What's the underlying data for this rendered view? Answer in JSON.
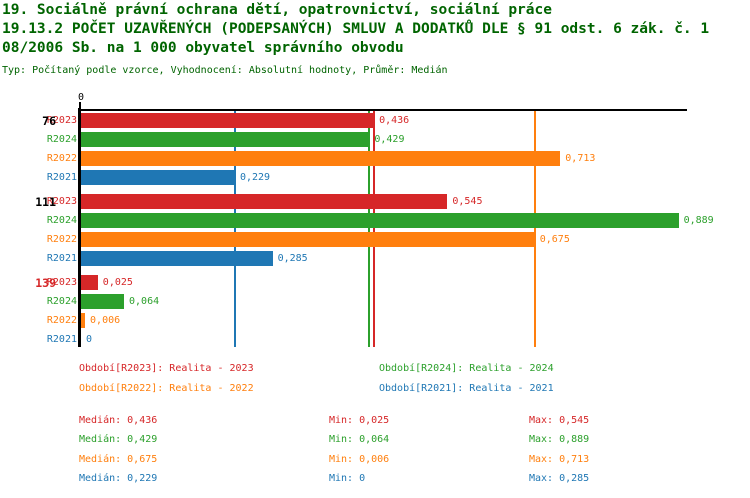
{
  "header": {
    "title_line1": "19. Sociálně právní ochrana dětí, opatrovnictví, sociální práce",
    "title_line2": "19.13.2 POČET UZAVŘENÝCH (PODEPSANÝCH) SMLUV A DODATKŮ DLE § 91 odst. 6 zák. č. 1",
    "title_line3": "08/2006 Sb. na 1 000 obyvatel správního obvodu",
    "subtitle": "Typ: Počítaný podle vzorce, Vyhodnocení: Absolutní hodnoty, Průměr: Medián",
    "title_color": "#006400"
  },
  "chart_data": {
    "type": "bar",
    "orientation": "horizontal",
    "value_axis": {
      "min": 0,
      "max": 0.9,
      "origin_tick_label": "0"
    },
    "grid": "off",
    "series_order": [
      "R2023",
      "R2024",
      "R2022",
      "R2021"
    ],
    "series_colors": {
      "R2023": "#d62728",
      "R2024": "#2ca02c",
      "R2022": "#ff7f0e",
      "R2021": "#1f77b4"
    },
    "groups": [
      {
        "label": "76",
        "label_color": "#000000",
        "values": {
          "R2023": 0.436,
          "R2024": 0.429,
          "R2022": 0.713,
          "R2021": 0.229
        },
        "value_labels": {
          "R2023": "0,436",
          "R2024": "0,429",
          "R2022": "0,713",
          "R2021": "0,229"
        }
      },
      {
        "label": "111",
        "label_color": "#000000",
        "values": {
          "R2023": 0.545,
          "R2024": 0.889,
          "R2022": 0.675,
          "R2021": 0.285
        },
        "value_labels": {
          "R2023": "0,545",
          "R2024": "0,889",
          "R2022": "0,675",
          "R2021": "0,285"
        }
      },
      {
        "label": "139",
        "label_color": "#d62728",
        "values": {
          "R2023": 0.025,
          "R2024": 0.064,
          "R2022": 0.006,
          "R2021": 0
        },
        "value_labels": {
          "R2023": "0,025",
          "R2024": "0,064",
          "R2022": "0,006",
          "R2021": "0"
        }
      }
    ],
    "median_lines": [
      {
        "series": "R2023",
        "value": 0.436
      },
      {
        "series": "R2024",
        "value": 0.429
      },
      {
        "series": "R2022",
        "value": 0.675
      },
      {
        "series": "R2021",
        "value": 0.229
      }
    ]
  },
  "legend": {
    "items": [
      {
        "series": "R2023",
        "text": "Období[R2023]: Realita - 2023"
      },
      {
        "series": "R2024",
        "text": "Období[R2024]: Realita - 2024"
      },
      {
        "series": "R2022",
        "text": "Období[R2022]: Realita - 2022"
      },
      {
        "series": "R2021",
        "text": "Období[R2021]: Realita - 2021"
      }
    ]
  },
  "stats": {
    "labels": {
      "median": "Medián",
      "min": "Min",
      "max": "Max"
    },
    "rows": [
      {
        "series": "R2023",
        "median": "0,436",
        "min": "0,025",
        "max": "0,545"
      },
      {
        "series": "R2024",
        "median": "0,429",
        "min": "0,064",
        "max": "0,889"
      },
      {
        "series": "R2022",
        "median": "0,675",
        "min": "0,006",
        "max": "0,713"
      },
      {
        "series": "R2021",
        "median": "0,229",
        "min": "0",
        "max": "0,285"
      }
    ]
  }
}
